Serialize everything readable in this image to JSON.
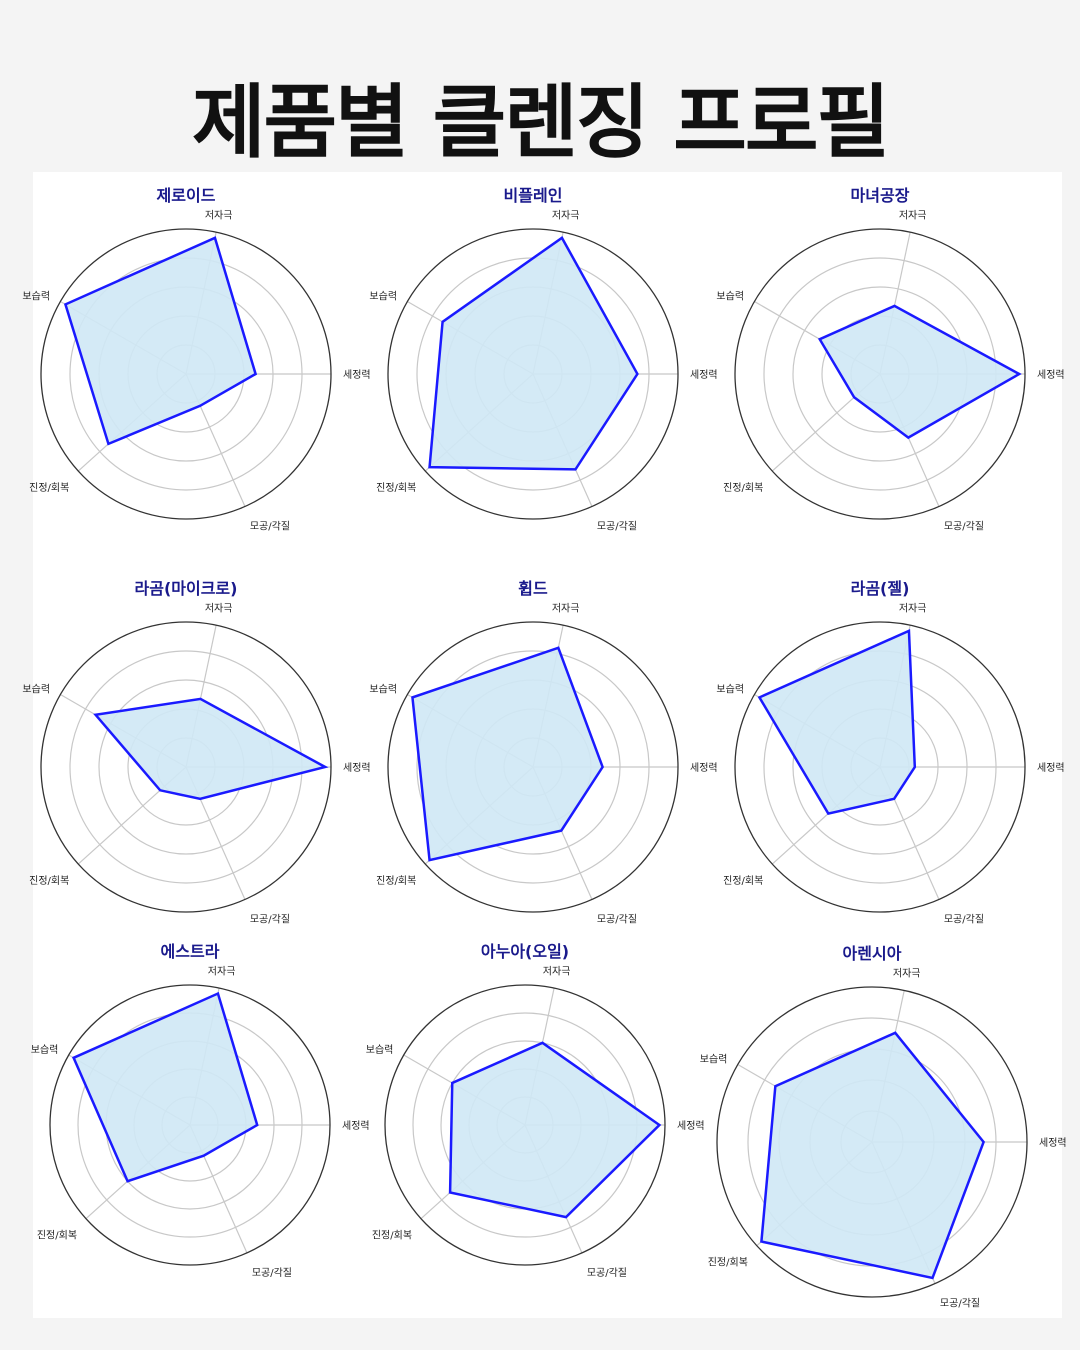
{
  "page": {
    "title": "제품별 클렌징 프로필"
  },
  "colors": {
    "series_line": "#1a1aff",
    "series_fill": "#cfe8f5",
    "outer_circle": "#333333",
    "grid": "#c8c8c8",
    "title_text": "#1a1a8c"
  },
  "chart_data": [
    {
      "type": "radar",
      "title": "제로이드",
      "axes": [
        "세정력",
        "저자극",
        "보습력",
        "진정/회복",
        "모공/각질"
      ],
      "values": [
        2,
        4,
        4,
        3,
        1
      ],
      "rlim": [
        0,
        4
      ],
      "grid": true
    },
    {
      "type": "radar",
      "title": "비플레인",
      "axes": [
        "세정력",
        "저자극",
        "보습력",
        "진정/회복",
        "모공/각질"
      ],
      "values": [
        3,
        4,
        3,
        4,
        3
      ],
      "rlim": [
        0,
        4
      ],
      "grid": true
    },
    {
      "type": "radar",
      "title": "마녀공장",
      "axes": [
        "세정력",
        "저자극",
        "보습력",
        "진정/회복",
        "모공/각질"
      ],
      "values": [
        4,
        2,
        2,
        1,
        2
      ],
      "rlim": [
        0,
        4
      ],
      "grid": true
    },
    {
      "type": "radar",
      "title": "라곰(마이크로)",
      "axes": [
        "세정력",
        "저자극",
        "보습력",
        "진정/회복",
        "모공/각질"
      ],
      "values": [
        4,
        2,
        3,
        1,
        1
      ],
      "rlim": [
        0,
        4
      ],
      "grid": true
    },
    {
      "type": "radar",
      "title": "휩드",
      "axes": [
        "세정력",
        "저자극",
        "보습력",
        "진정/회복",
        "모공/각질"
      ],
      "values": [
        2,
        3.5,
        4,
        4,
        2
      ],
      "rlim": [
        0,
        4
      ],
      "grid": true
    },
    {
      "type": "radar",
      "title": "라곰(젤)",
      "axes": [
        "세정력",
        "저자극",
        "보습력",
        "진정/회복",
        "모공/각질"
      ],
      "values": [
        1,
        4,
        4,
        2,
        1
      ],
      "rlim": [
        0,
        4
      ],
      "grid": true
    },
    {
      "type": "radar",
      "title": "에스트라",
      "axes": [
        "세정력",
        "저자극",
        "보습력",
        "진정/회복",
        "모공/각질"
      ],
      "values": [
        2,
        4,
        4,
        2.5,
        1
      ],
      "rlim": [
        0,
        4
      ],
      "grid": true
    },
    {
      "type": "radar",
      "title": "아누아(오일)",
      "axes": [
        "세정력",
        "저자극",
        "보습력",
        "진정/회복",
        "모공/각질"
      ],
      "values": [
        4,
        2.5,
        2.5,
        3,
        3
      ],
      "rlim": [
        0,
        4
      ],
      "grid": true
    },
    {
      "type": "radar",
      "title": "아렌시아",
      "axes": [
        "세정력",
        "저자극",
        "보습력",
        "진정/회복",
        "모공/각질"
      ],
      "values": [
        3,
        3,
        3,
        4,
        4
      ],
      "rlim": [
        0,
        4
      ],
      "grid": true
    }
  ]
}
